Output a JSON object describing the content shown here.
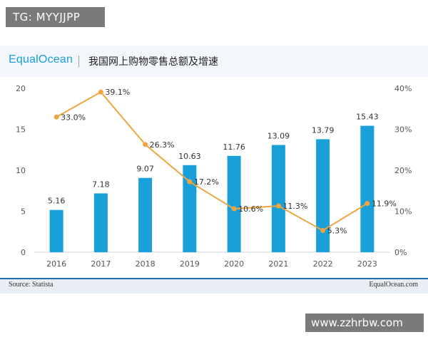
{
  "watermark_top": "TG: MYYJJPP",
  "watermark_bottom": "www.zzhrbw.com",
  "header": {
    "logo": "EqualOcean",
    "title": "我国网上购物零售总额及增速"
  },
  "footer": {
    "source": "Source: Statista",
    "brand": "EqualOcean.com"
  },
  "colors": {
    "bar": "#1aa0d8",
    "line": "#f0a640",
    "logo": "#1aa0d8",
    "footer_rule": "#1f6fb0"
  },
  "chart_data": {
    "type": "bar",
    "categories": [
      "2016",
      "2017",
      "2018",
      "2019",
      "2020",
      "2021",
      "2022",
      "2023"
    ],
    "series": [
      {
        "type": "bar",
        "axis": "left",
        "values": [
          5.16,
          7.18,
          9.07,
          10.63,
          11.76,
          13.09,
          13.79,
          15.43
        ],
        "labels": [
          "5.16",
          "7.18",
          "9.07",
          "10.63",
          "11.76",
          "13.09",
          "13.79",
          "15.43"
        ]
      },
      {
        "type": "line",
        "axis": "right",
        "values": [
          33.0,
          39.1,
          26.3,
          17.2,
          10.6,
          11.3,
          5.3,
          11.9
        ],
        "labels": [
          "33.0%",
          "39.1%",
          "26.3%",
          "17.2%",
          "10.6%",
          "11.3%",
          "5.3%",
          "11.9%"
        ]
      }
    ],
    "y_left": {
      "min": 0,
      "max": 20,
      "ticks": [
        "0",
        "5",
        "10",
        "15",
        "20"
      ]
    },
    "y_right": {
      "min": 0,
      "max": 40,
      "ticks": [
        "0%",
        "10%",
        "20%",
        "30%",
        "40%"
      ]
    },
    "grid": false,
    "legend": "none"
  }
}
